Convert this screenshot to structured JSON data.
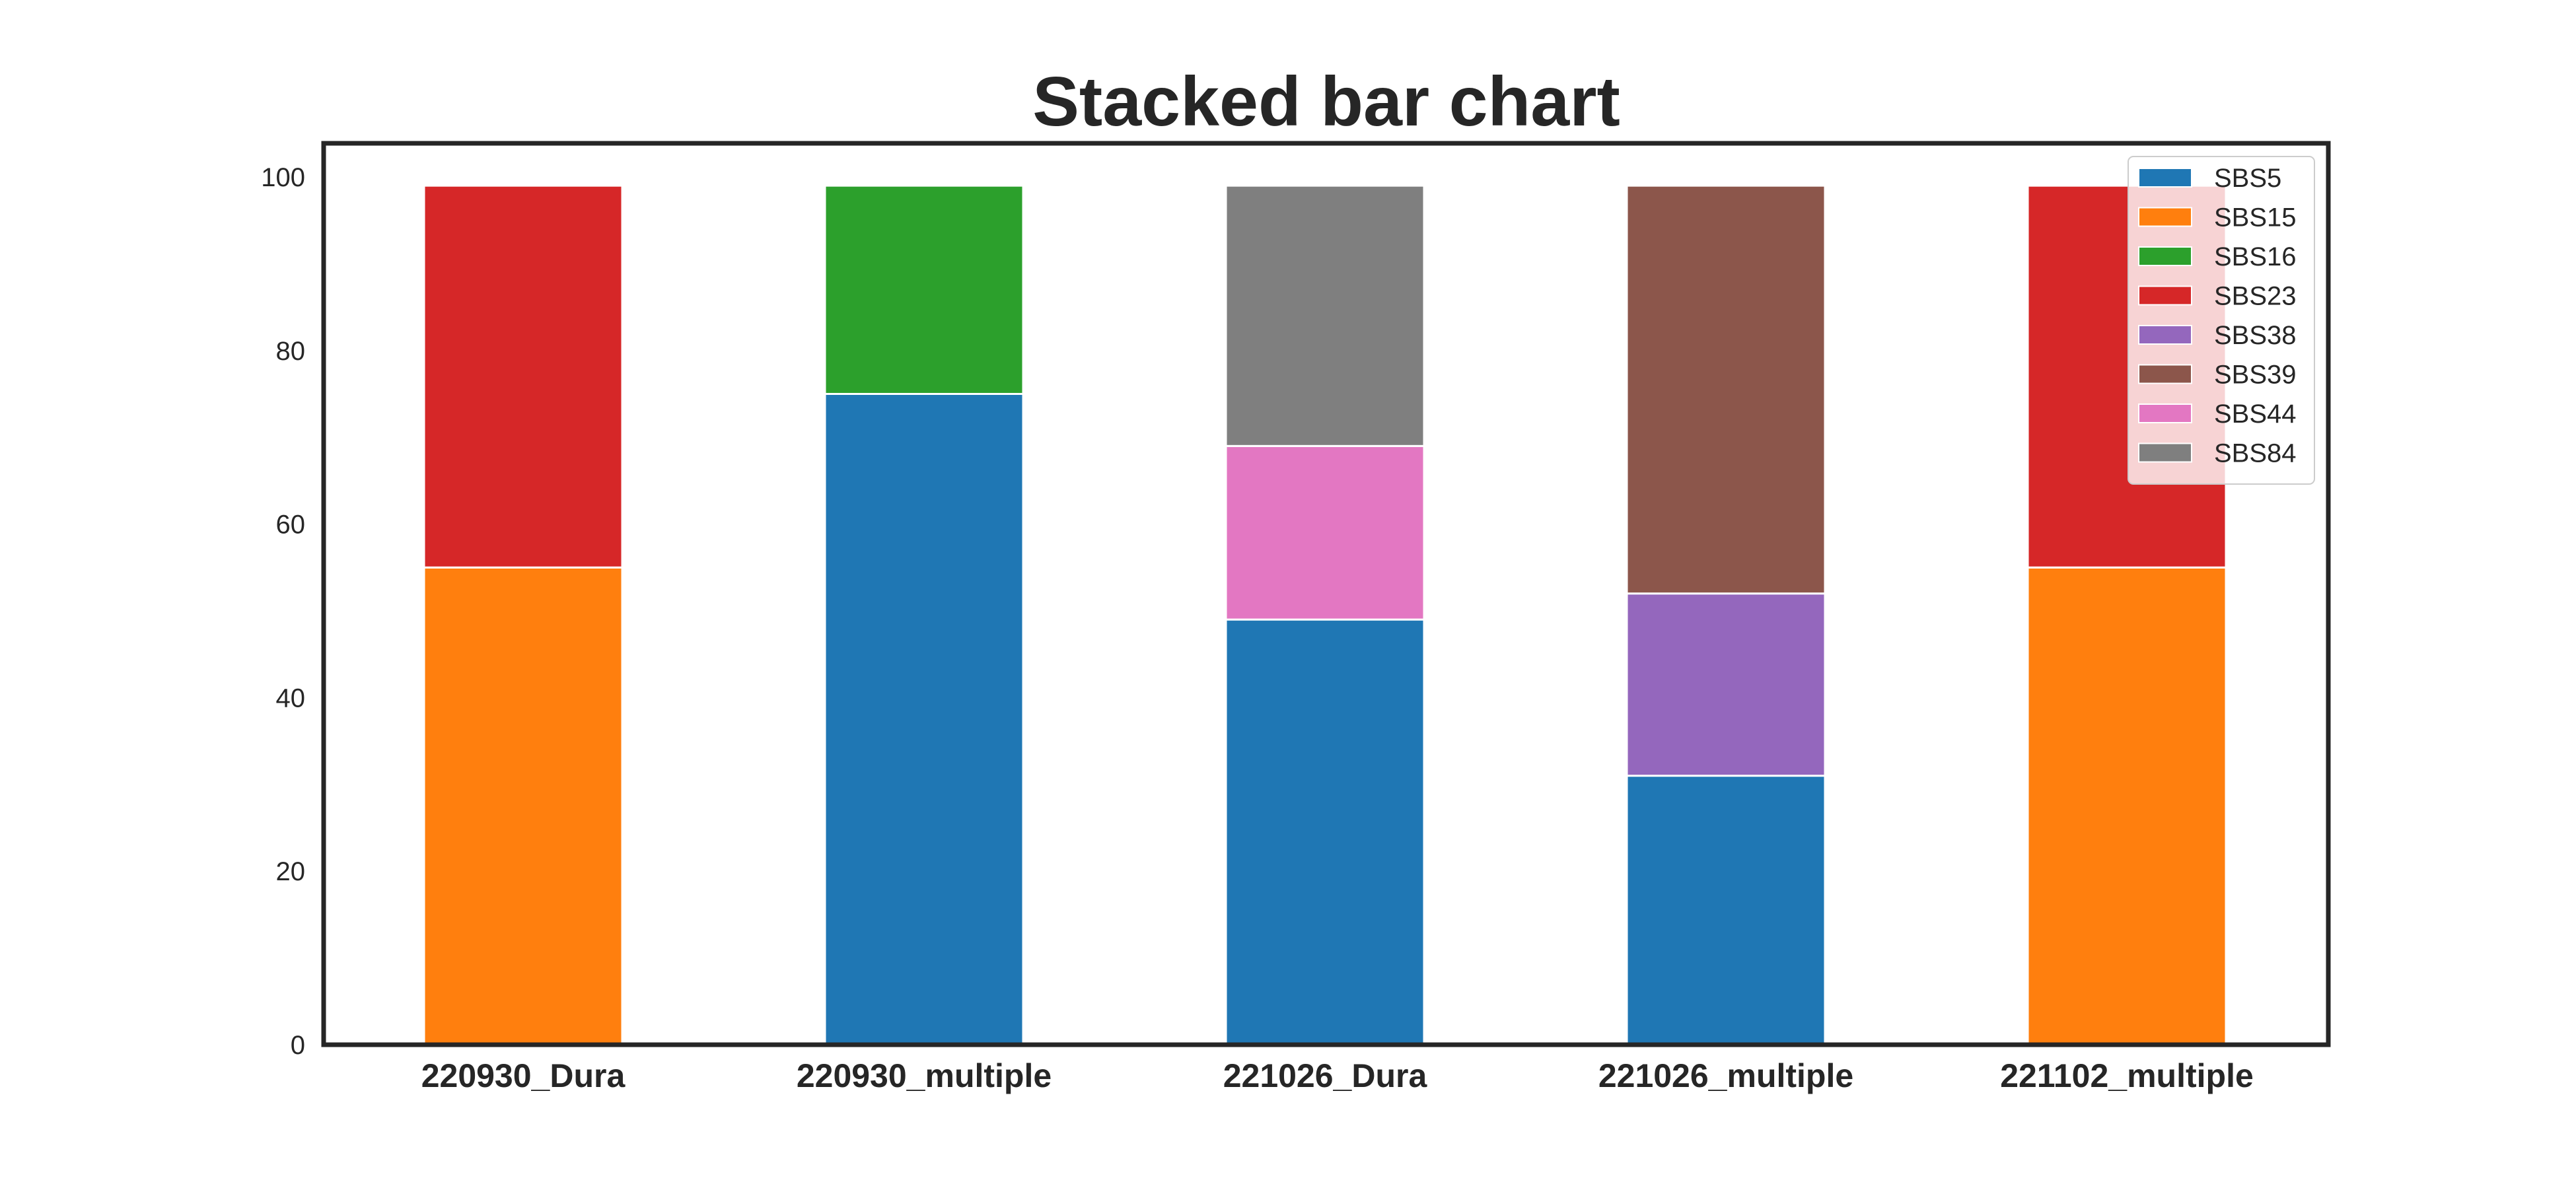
{
  "chart_data": {
    "type": "bar",
    "stacked": true,
    "title": "Stacked bar chart",
    "xlabel": "",
    "ylabel": "",
    "ylim": [
      0,
      100
    ],
    "yticks": [
      0,
      20,
      40,
      60,
      80,
      100
    ],
    "grid": false,
    "legend_position": "top-right",
    "categories": [
      "220930_Dura",
      "220930_multiple",
      "221026_Dura",
      "221026_multiple",
      "221102_multiple"
    ],
    "series": [
      {
        "name": "SBS5",
        "color": "#1f77b4",
        "values": [
          0,
          75,
          49,
          31,
          0
        ]
      },
      {
        "name": "SBS15",
        "color": "#ff7f0e",
        "values": [
          55,
          0,
          0,
          0,
          55
        ]
      },
      {
        "name": "SBS16",
        "color": "#2ca02c",
        "values": [
          0,
          24,
          0,
          0,
          0
        ]
      },
      {
        "name": "SBS23",
        "color": "#d62728",
        "values": [
          44,
          0,
          0,
          0,
          44
        ]
      },
      {
        "name": "SBS38",
        "color": "#9467bd",
        "values": [
          0,
          0,
          0,
          21,
          0
        ]
      },
      {
        "name": "SBS39",
        "color": "#8c564b",
        "values": [
          0,
          0,
          0,
          47,
          0
        ]
      },
      {
        "name": "SBS44",
        "color": "#e377c2",
        "values": [
          0,
          0,
          20,
          0,
          0
        ]
      },
      {
        "name": "SBS84",
        "color": "#7f7f7f",
        "values": [
          0,
          0,
          30,
          0,
          0
        ]
      }
    ]
  }
}
